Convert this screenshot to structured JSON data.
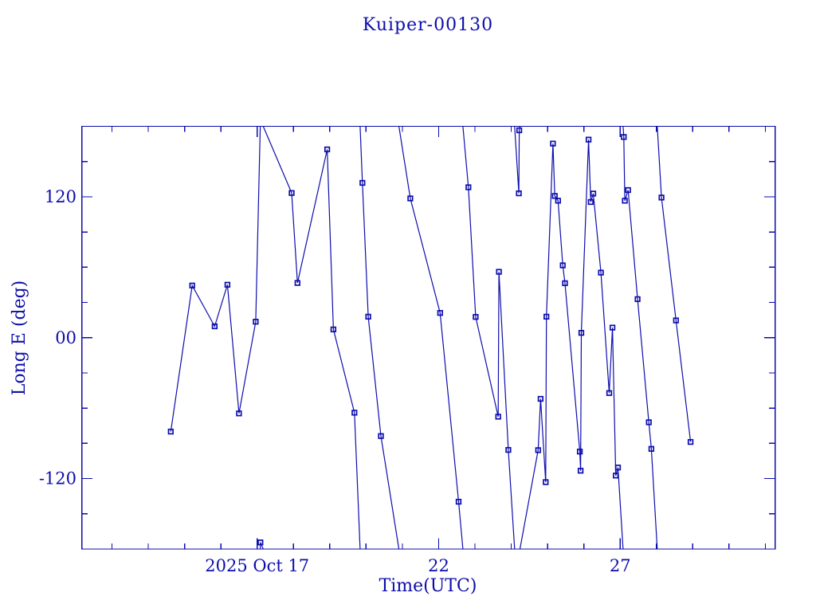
{
  "page": {
    "background": "#ffffff",
    "ink_color": "#0d0dad"
  },
  "chart_data": {
    "type": "line",
    "title": "Kuiper-00130",
    "xlabel": "Time(UTC)",
    "ylabel": "Long E (deg)",
    "x_unit": "day of October 2025, UTC",
    "xlim": [
      12.17,
      31.27
    ],
    "ylim": [
      -180,
      180
    ],
    "wrap_at_deg": 180,
    "grid": "off",
    "legend": "none",
    "marker": "open-square",
    "line_color": "#0d0dad",
    "x_major_ticks": [
      {
        "value": 17,
        "label": "2025 Oct 17"
      },
      {
        "value": 22,
        "label": "22"
      },
      {
        "value": 27,
        "label": "27"
      }
    ],
    "x_minor_tick_interval": 1,
    "y_major_ticks": [
      {
        "value": 120,
        "label": "120"
      },
      {
        "value": 0,
        "label": "00"
      },
      {
        "value": -120,
        "label": "-120"
      }
    ],
    "y_minor_tick_interval": 30,
    "points": [
      [
        14.62,
        -80.0
      ],
      [
        15.21,
        44.4
      ],
      [
        15.83,
        9.7
      ],
      [
        16.18,
        45.1
      ],
      [
        16.5,
        -64.5
      ],
      [
        16.96,
        13.6
      ],
      [
        17.09,
        -174.4
      ],
      [
        17.95,
        123.2
      ],
      [
        18.11,
        46.6
      ],
      [
        18.93,
        160.3
      ],
      [
        19.1,
        7.0
      ],
      [
        19.68,
        -63.9
      ],
      [
        19.9,
        131.8
      ],
      [
        20.06,
        17.9
      ],
      [
        20.41,
        -83.8
      ],
      [
        21.22,
        118.6
      ],
      [
        22.04,
        21.1
      ],
      [
        22.55,
        -139.7
      ],
      [
        22.82,
        128.1
      ],
      [
        23.02,
        17.7
      ],
      [
        23.64,
        -67.3
      ],
      [
        23.66,
        56.1
      ],
      [
        23.92,
        -95.6
      ],
      [
        24.21,
        122.9
      ],
      [
        24.22,
        176.6
      ],
      [
        24.74,
        -95.8
      ],
      [
        24.81,
        -52.1
      ],
      [
        24.95,
        -123.0
      ],
      [
        24.97,
        17.9
      ],
      [
        25.15,
        165.3
      ],
      [
        25.2,
        120.7
      ],
      [
        25.29,
        116.6
      ],
      [
        25.42,
        61.6
      ],
      [
        25.48,
        46.4
      ],
      [
        25.89,
        -97.0
      ],
      [
        25.91,
        -113.3
      ],
      [
        25.93,
        4.1
      ],
      [
        26.13,
        168.7
      ],
      [
        26.19,
        115.5
      ],
      [
        26.26,
        122.7
      ],
      [
        26.47,
        55.4
      ],
      [
        26.7,
        -47.1
      ],
      [
        26.79,
        8.6
      ],
      [
        26.88,
        -117.4
      ],
      [
        26.94,
        -110.6
      ],
      [
        27.1,
        170.9
      ],
      [
        27.13,
        116.6
      ],
      [
        27.22,
        125.7
      ],
      [
        27.48,
        32.8
      ],
      [
        27.79,
        -72.0
      ],
      [
        27.86,
        -94.7
      ],
      [
        28.14,
        119.3
      ],
      [
        28.54,
        14.7
      ],
      [
        28.94,
        -88.8
      ]
    ]
  }
}
